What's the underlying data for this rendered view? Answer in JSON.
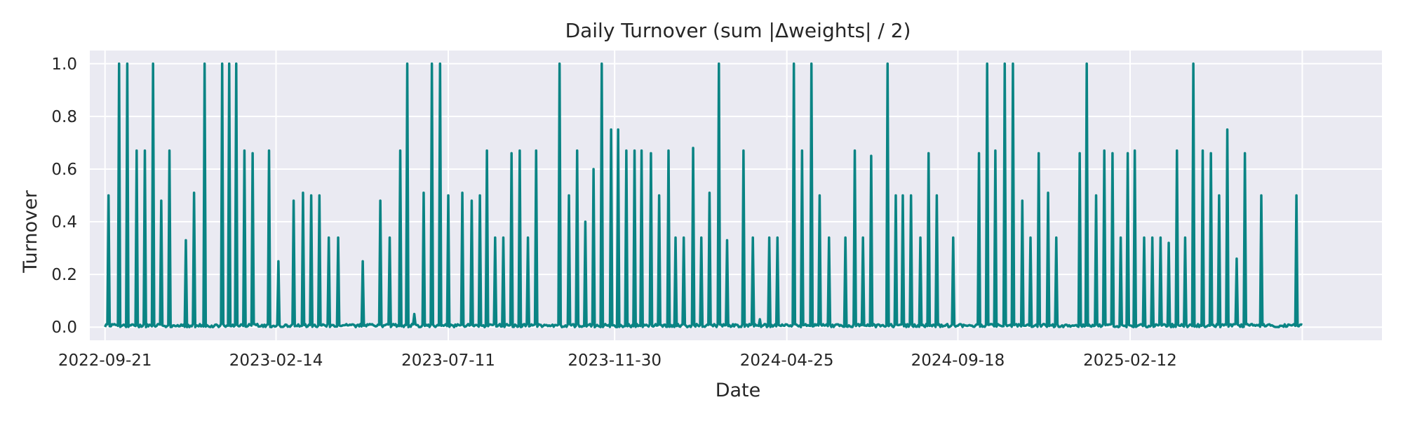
{
  "chart_data": {
    "type": "line",
    "title": "Daily Turnover (sum |Δweights| / 2)",
    "xlabel": "Date",
    "ylabel": "Turnover",
    "x_ticks": [
      "2022-09-21",
      "2023-02-14",
      "2023-07-11",
      "2023-11-30",
      "2024-04-25",
      "2024-09-18",
      "2025-02-12"
    ],
    "xlim": [
      "2022-09-08",
      "2025-09-15"
    ],
    "ylim": [
      -0.05,
      1.05
    ],
    "y_ticks": [
      0.0,
      0.2,
      0.4,
      0.6,
      0.8,
      1.0
    ],
    "y_tick_labels": [
      "0.0",
      "0.2",
      "0.4",
      "0.6",
      "0.8",
      "1.0"
    ],
    "grid": true,
    "colors": {
      "background": "#eaeaf2",
      "grid": "#ffffff",
      "line": "#0a8484"
    },
    "series": [
      {
        "start_date": "2022-09-21",
        "spikes": [
          [
            "2022-09-24",
            0.5
          ],
          [
            "2022-10-03",
            1.0
          ],
          [
            "2022-10-10",
            1.0
          ],
          [
            "2022-10-18",
            0.67
          ],
          [
            "2022-10-25",
            0.67
          ],
          [
            "2022-11-01",
            1.0
          ],
          [
            "2022-11-08",
            0.48
          ],
          [
            "2022-11-15",
            0.67
          ],
          [
            "2022-11-29",
            0.33
          ],
          [
            "2022-12-06",
            0.51
          ],
          [
            "2022-12-15",
            1.0
          ],
          [
            "2022-12-30",
            1.0
          ],
          [
            "2023-01-05",
            1.0
          ],
          [
            "2023-01-11",
            1.0
          ],
          [
            "2023-01-18",
            0.67
          ],
          [
            "2023-01-25",
            0.66
          ],
          [
            "2023-02-08",
            0.67
          ],
          [
            "2023-02-16",
            0.25
          ],
          [
            "2023-03-01",
            0.48
          ],
          [
            "2023-03-09",
            0.51
          ],
          [
            "2023-03-16",
            0.5
          ],
          [
            "2023-03-23",
            0.5
          ],
          [
            "2023-03-31",
            0.34
          ],
          [
            "2023-04-08",
            0.34
          ],
          [
            "2023-04-29",
            0.25
          ],
          [
            "2023-05-14",
            0.48
          ],
          [
            "2023-05-22",
            0.34
          ],
          [
            "2023-05-31",
            0.67
          ],
          [
            "2023-06-06",
            1.0
          ],
          [
            "2023-06-12",
            0.05
          ],
          [
            "2023-06-20",
            0.51
          ],
          [
            "2023-06-27",
            1.0
          ],
          [
            "2023-07-04",
            1.0
          ],
          [
            "2023-07-11",
            0.5
          ],
          [
            "2023-07-23",
            0.51
          ],
          [
            "2023-07-31",
            0.48
          ],
          [
            "2023-08-07",
            0.5
          ],
          [
            "2023-08-13",
            0.67
          ],
          [
            "2023-08-20",
            0.34
          ],
          [
            "2023-08-27",
            0.34
          ],
          [
            "2023-09-03",
            0.66
          ],
          [
            "2023-09-10",
            0.67
          ],
          [
            "2023-09-17",
            0.34
          ],
          [
            "2023-09-24",
            0.67
          ],
          [
            "2023-10-14",
            1.0
          ],
          [
            "2023-10-22",
            0.5
          ],
          [
            "2023-10-29",
            0.67
          ],
          [
            "2023-11-05",
            0.4
          ],
          [
            "2023-11-12",
            0.6
          ],
          [
            "2023-11-19",
            1.0
          ],
          [
            "2023-11-27",
            0.75
          ],
          [
            "2023-12-03",
            0.75
          ],
          [
            "2023-12-10",
            0.67
          ],
          [
            "2023-12-17",
            0.67
          ],
          [
            "2023-12-23",
            0.67
          ],
          [
            "2023-12-31",
            0.66
          ],
          [
            "2024-01-07",
            0.5
          ],
          [
            "2024-01-15",
            0.67
          ],
          [
            "2024-01-21",
            0.34
          ],
          [
            "2024-01-28",
            0.34
          ],
          [
            "2024-02-05",
            0.68
          ],
          [
            "2024-02-12",
            0.34
          ],
          [
            "2024-02-19",
            0.51
          ],
          [
            "2024-02-27",
            1.0
          ],
          [
            "2024-03-05",
            0.33
          ],
          [
            "2024-03-19",
            0.67
          ],
          [
            "2024-03-27",
            0.34
          ],
          [
            "2024-04-02",
            0.03
          ],
          [
            "2024-04-10",
            0.34
          ],
          [
            "2024-04-17",
            0.34
          ],
          [
            "2024-05-01",
            1.0
          ],
          [
            "2024-05-08",
            0.67
          ],
          [
            "2024-05-16",
            1.0
          ],
          [
            "2024-05-23",
            0.5
          ],
          [
            "2024-05-31",
            0.34
          ],
          [
            "2024-06-14",
            0.34
          ],
          [
            "2024-06-22",
            0.67
          ],
          [
            "2024-06-29",
            0.34
          ],
          [
            "2024-07-06",
            0.65
          ],
          [
            "2024-07-20",
            1.0
          ],
          [
            "2024-07-27",
            0.5
          ],
          [
            "2024-08-02",
            0.5
          ],
          [
            "2024-08-09",
            0.5
          ],
          [
            "2024-08-17",
            0.34
          ],
          [
            "2024-08-24",
            0.66
          ],
          [
            "2024-08-31",
            0.5
          ],
          [
            "2024-09-14",
            0.34
          ],
          [
            "2024-10-06",
            0.66
          ],
          [
            "2024-10-13",
            1.0
          ],
          [
            "2024-10-20",
            0.67
          ],
          [
            "2024-10-28",
            1.0
          ],
          [
            "2024-11-04",
            1.0
          ],
          [
            "2024-11-12",
            0.48
          ],
          [
            "2024-11-19",
            0.34
          ],
          [
            "2024-11-26",
            0.66
          ],
          [
            "2024-12-04",
            0.51
          ],
          [
            "2024-12-11",
            0.34
          ],
          [
            "2024-12-31",
            0.66
          ],
          [
            "2025-01-06",
            1.0
          ],
          [
            "2025-01-14",
            0.5
          ],
          [
            "2025-01-21",
            0.67
          ],
          [
            "2025-01-28",
            0.66
          ],
          [
            "2025-02-04",
            0.34
          ],
          [
            "2025-02-10",
            0.66
          ],
          [
            "2025-02-16",
            0.67
          ],
          [
            "2025-02-24",
            0.34
          ],
          [
            "2025-03-03",
            0.34
          ],
          [
            "2025-03-10",
            0.34
          ],
          [
            "2025-03-17",
            0.32
          ],
          [
            "2025-03-24",
            0.67
          ],
          [
            "2025-03-31",
            0.34
          ],
          [
            "2025-04-07",
            1.0
          ],
          [
            "2025-04-15",
            0.67
          ],
          [
            "2025-04-22",
            0.66
          ],
          [
            "2025-04-29",
            0.5
          ],
          [
            "2025-05-06",
            0.75
          ],
          [
            "2025-05-14",
            0.26
          ],
          [
            "2025-05-21",
            0.66
          ],
          [
            "2025-06-04",
            0.5
          ],
          [
            "2025-07-04",
            0.5
          ]
        ],
        "end_date": "2025-07-09"
      }
    ]
  }
}
